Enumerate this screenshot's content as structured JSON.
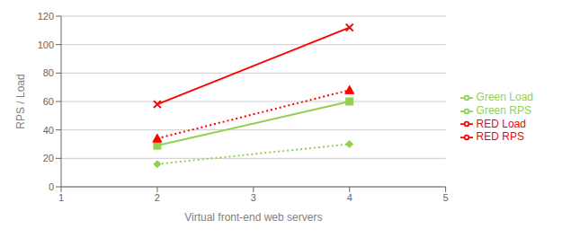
{
  "chart_data": {
    "type": "line",
    "x": [
      2,
      4
    ],
    "series": [
      {
        "name": "Green Load",
        "color": "#92d050",
        "values": [
          16,
          30
        ],
        "marker": "diamond",
        "line_style": "dotted"
      },
      {
        "name": "Green RPS",
        "color": "#92d050",
        "values": [
          29,
          60
        ],
        "marker": "square",
        "line_style": "solid"
      },
      {
        "name": "RED Load",
        "color": "#ff0000",
        "values": [
          34,
          68
        ],
        "marker": "triangle",
        "line_style": "dotted"
      },
      {
        "name": "RED RPS",
        "color": "#ff0000",
        "values": [
          58,
          112
        ],
        "marker": "x",
        "line_style": "solid"
      }
    ],
    "xlabel": "Virtual front-end web servers",
    "ylabel": "RPS / Load",
    "xlim": [
      1,
      5
    ],
    "ylim": [
      0,
      120
    ],
    "xticks": [
      1,
      2,
      3,
      4,
      5
    ],
    "yticks": [
      0,
      20,
      40,
      60,
      80,
      100,
      120
    ],
    "grid": true,
    "legend": "right"
  }
}
